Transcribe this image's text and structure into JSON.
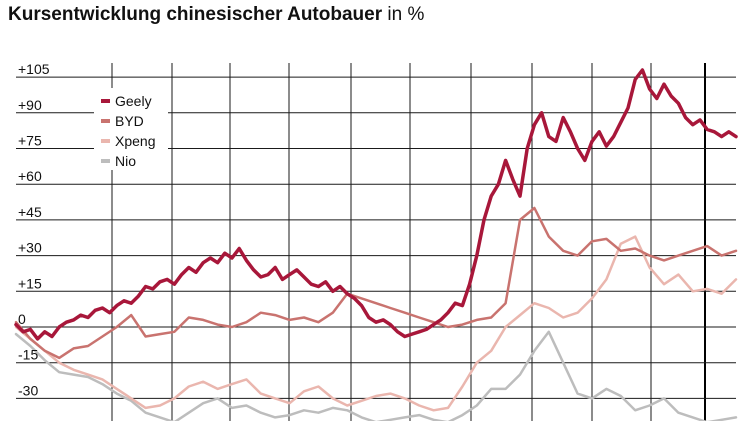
{
  "chart_data": {
    "type": "line",
    "title": "Kursentwicklung chinesischer Autobauer",
    "title_unit": "in %",
    "ylim": [
      -35,
      110
    ],
    "y_ticks": [
      {
        "value": 105,
        "label": "+105"
      },
      {
        "value": 90,
        "label": "+90"
      },
      {
        "value": 75,
        "label": "+75"
      },
      {
        "value": 60,
        "label": "+60"
      },
      {
        "value": 45,
        "label": "+45"
      },
      {
        "value": 30,
        "label": "+30"
      },
      {
        "value": 15,
        "label": "+15"
      },
      {
        "value": 0,
        "label": "0"
      },
      {
        "value": -15,
        "label": "-15"
      },
      {
        "value": -30,
        "label": "-30"
      }
    ],
    "xlim": [
      0,
      100
    ],
    "grid": true,
    "legend_position": "top-left",
    "series": [
      {
        "name": "Geely",
        "color": "#a8173a",
        "x": [
          0,
          1,
          2,
          3,
          4,
          5,
          6,
          7,
          8,
          9,
          10,
          11,
          12,
          13,
          14,
          15,
          16,
          17,
          18,
          19,
          20,
          21,
          22,
          23,
          24,
          25,
          26,
          27,
          28,
          29,
          30,
          31,
          32,
          33,
          34,
          35,
          36,
          37,
          38,
          39,
          40,
          41,
          42,
          43,
          44,
          45,
          46,
          47,
          48,
          49,
          50,
          51,
          52,
          53,
          54,
          55,
          56,
          57,
          58,
          59,
          60,
          61,
          62,
          63,
          64,
          65,
          66,
          67,
          68,
          69,
          70,
          71,
          72,
          73,
          74,
          75,
          76,
          77,
          78,
          79,
          80,
          81,
          82,
          83,
          84,
          85,
          86,
          87,
          88,
          89,
          90,
          91,
          92,
          93,
          94,
          95,
          96,
          97,
          98,
          99,
          100
        ],
        "values": [
          1,
          -2,
          -1,
          -5,
          -2,
          -4,
          0,
          2,
          3,
          5,
          4,
          7,
          8,
          6,
          9,
          11,
          10,
          13,
          17,
          16,
          19,
          20,
          18,
          22,
          25,
          23,
          27,
          29,
          27,
          31,
          29,
          33,
          28,
          24,
          21,
          22,
          25,
          20,
          22,
          24,
          21,
          18,
          17,
          19,
          15,
          17,
          14,
          12,
          9,
          4,
          2,
          3,
          1,
          -2,
          -4,
          -3,
          -2,
          -1,
          1,
          3,
          6,
          10,
          9,
          18,
          30,
          45,
          55,
          60,
          70,
          62,
          55,
          75,
          85,
          90,
          80,
          78,
          88,
          82,
          75,
          70,
          78,
          82,
          76,
          80,
          86,
          92,
          104,
          108,
          100,
          96,
          102,
          97,
          94,
          88,
          85,
          87,
          83,
          82,
          80,
          82,
          80
        ],
        "width": 3.5
      },
      {
        "name": "BYD",
        "color": "#c9736f",
        "x": [
          0,
          2,
          4,
          6,
          8,
          10,
          12,
          14,
          16,
          18,
          20,
          22,
          24,
          26,
          28,
          30,
          32,
          34,
          36,
          38,
          40,
          42,
          44,
          46,
          48,
          50,
          52,
          54,
          56,
          58,
          60,
          62,
          64,
          66,
          68,
          70,
          72,
          74,
          76,
          78,
          80,
          82,
          84,
          86,
          88,
          90,
          92,
          94,
          96,
          98,
          100
        ],
        "values": [
          2,
          -5,
          -10,
          -13,
          -9,
          -8,
          -4,
          0,
          5,
          -4,
          -3,
          -2,
          4,
          3,
          1,
          0,
          2,
          6,
          5,
          3,
          4,
          2,
          6,
          14,
          12,
          10,
          8,
          6,
          4,
          2,
          0,
          1,
          3,
          4,
          10,
          45,
          50,
          38,
          32,
          30,
          36,
          37,
          32,
          33,
          30,
          28,
          30,
          32,
          34,
          30,
          32
        ],
        "width": 2.5
      },
      {
        "name": "Xpeng",
        "color": "#eab6ae",
        "x": [
          0,
          2,
          4,
          6,
          8,
          10,
          12,
          14,
          16,
          18,
          20,
          22,
          24,
          26,
          28,
          30,
          32,
          34,
          36,
          38,
          40,
          42,
          44,
          46,
          48,
          50,
          52,
          54,
          56,
          58,
          60,
          62,
          64,
          66,
          68,
          70,
          72,
          74,
          76,
          78,
          80,
          82,
          84,
          86,
          88,
          90,
          92,
          94,
          96,
          98,
          100
        ],
        "values": [
          0,
          -5,
          -10,
          -15,
          -18,
          -20,
          -22,
          -26,
          -30,
          -34,
          -33,
          -30,
          -25,
          -23,
          -26,
          -24,
          -22,
          -28,
          -30,
          -32,
          -27,
          -25,
          -30,
          -33,
          -31,
          -29,
          -28,
          -30,
          -33,
          -35,
          -34,
          -25,
          -15,
          -10,
          0,
          5,
          10,
          8,
          4,
          6,
          12,
          20,
          35,
          38,
          25,
          18,
          22,
          15,
          16,
          14,
          20
        ],
        "width": 2.5
      },
      {
        "name": "Nio",
        "color": "#bdbdbd",
        "x": [
          0,
          2,
          4,
          6,
          8,
          10,
          12,
          14,
          16,
          18,
          20,
          22,
          24,
          26,
          28,
          30,
          32,
          34,
          36,
          38,
          40,
          42,
          44,
          46,
          48,
          50,
          52,
          54,
          56,
          58,
          60,
          62,
          64,
          66,
          68,
          70,
          72,
          74,
          76,
          78,
          80,
          82,
          84,
          86,
          88,
          90,
          92,
          94,
          96,
          98,
          100
        ],
        "values": [
          -3,
          -8,
          -14,
          -19,
          -20,
          -21,
          -24,
          -28,
          -31,
          -36,
          -38,
          -40,
          -36,
          -32,
          -30,
          -34,
          -33,
          -36,
          -38,
          -37,
          -35,
          -36,
          -34,
          -35,
          -38,
          -40,
          -39,
          -38,
          -37,
          -39,
          -40,
          -37,
          -33,
          -26,
          -26,
          -20,
          -10,
          -2,
          -15,
          -28,
          -30,
          -26,
          -29,
          -35,
          -33,
          -30,
          -36,
          -38,
          -40,
          -39,
          -38
        ],
        "width": 2.5
      }
    ]
  }
}
